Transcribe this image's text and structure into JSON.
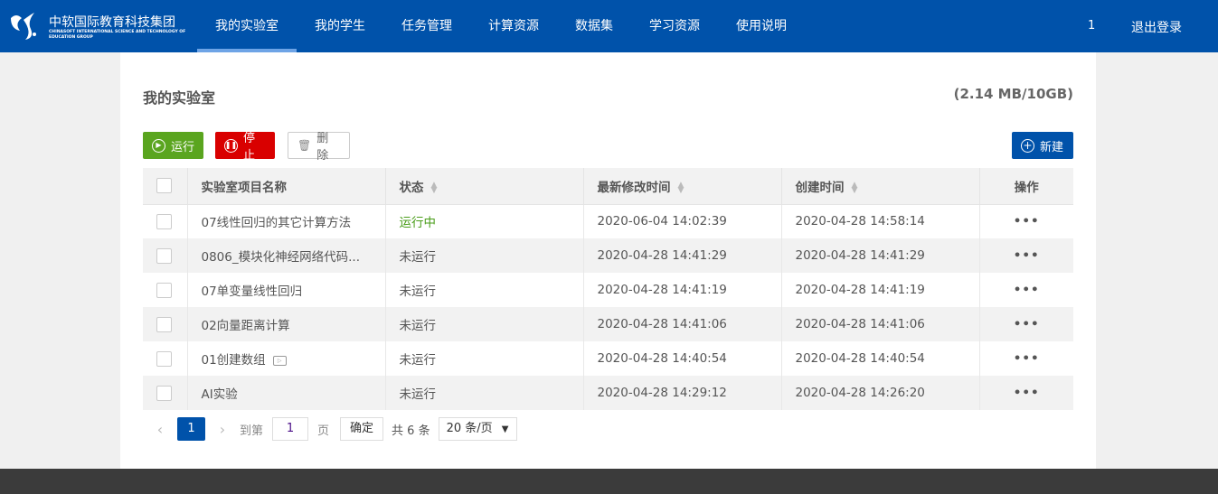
{
  "header": {
    "logo_cn": "中软国际教育科技集团",
    "logo_en": "CHINASOFT INTERNATIONAL SCIENCE AND TECHNOLOGY OF EDUCATION GROUP",
    "nav": [
      "我的实验室",
      "我的学生",
      "任务管理",
      "计算资源",
      "数据集",
      "学习资源",
      "使用说明"
    ],
    "active": "我的实验室",
    "user": "1",
    "logout": "退出登录"
  },
  "page": {
    "title": "我的实验室",
    "quota": "(2.14 MB/10GB)"
  },
  "toolbar": {
    "run": "运行",
    "stop": "停止",
    "delete": "删除",
    "new": "新建"
  },
  "table": {
    "columns": [
      "实验室项目名称",
      "状态",
      "最新修改时间",
      "创建时间",
      "操作"
    ],
    "rows": [
      {
        "name": "07线性回归的其它计算方法",
        "status": "运行中",
        "modified": "2020-06-04 14:02:39",
        "created": "2020-04-28 14:58:14"
      },
      {
        "name": "0806_模块化神经网络代码...",
        "status": "未运行",
        "modified": "2020-04-28 14:41:29",
        "created": "2020-04-28 14:41:29"
      },
      {
        "name": "07单变量线性回归",
        "status": "未运行",
        "modified": "2020-04-28 14:41:19",
        "created": "2020-04-28 14:41:19"
      },
      {
        "name": "02向量距离计算",
        "status": "未运行",
        "modified": "2020-04-28 14:41:06",
        "created": "2020-04-28 14:41:06"
      },
      {
        "name": "01创建数组",
        "status": "未运行",
        "modified": "2020-04-28 14:40:54",
        "created": "2020-04-28 14:40:54",
        "video": true
      },
      {
        "name": "AI实验",
        "status": "未运行",
        "modified": "2020-04-28 14:29:12",
        "created": "2020-04-28 14:26:20"
      }
    ],
    "action": "•••"
  },
  "pagination": {
    "current": "1",
    "goto_label": "到第",
    "goto_value": "1",
    "page_label": "页",
    "confirm": "确定",
    "total": "共 6 条",
    "page_size": "20 条/页"
  },
  "colors": {
    "brand": "#0052aa",
    "run": "#5aa51f",
    "stop": "#d90000",
    "running_text": "#4a9d1a"
  }
}
